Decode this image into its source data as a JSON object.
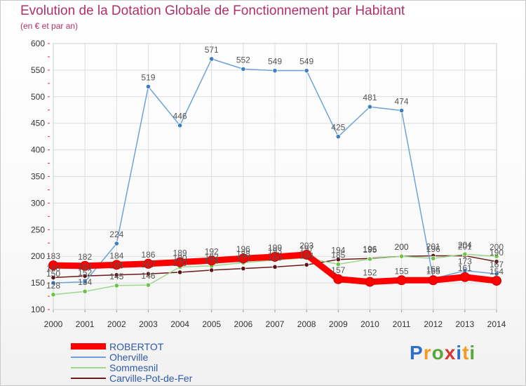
{
  "title": "Evolution de la Dotation Globale de Fonctionnement par Habitant",
  "subtitle": "(en € et par an)",
  "brand": {
    "letters": [
      "P",
      "r",
      "o",
      "x",
      "i",
      "t",
      "i"
    ]
  },
  "colors": {
    "title": "#b0306a",
    "axis_text": "#333333",
    "grid": "#dddddd",
    "value_label": "#555555",
    "legend_text": "#2e5aa6"
  },
  "chart_data": {
    "type": "line",
    "title": "Evolution de la Dotation Globale de Fonctionnement par Habitant",
    "subtitle": "(en € et par an)",
    "xlabel": "",
    "ylabel": "",
    "ylim": [
      100,
      600
    ],
    "yticks": [
      100,
      150,
      200,
      250,
      300,
      350,
      400,
      450,
      500,
      550,
      600
    ],
    "categories": [
      "2000",
      "2001",
      "2002",
      "2003",
      "2004",
      "2005",
      "2006",
      "2007",
      "2008",
      "2009",
      "2010",
      "2011",
      "2012",
      "2013",
      "2014"
    ],
    "series": [
      {
        "name": "Carville-Pot-de-Fer",
        "color": "#6b1a1a",
        "point": "#5a1212",
        "values": [
          160,
          163,
          165,
          167,
          170,
          174,
          177,
          180,
          184,
          194,
          196,
          200,
          201,
          201,
          190
        ],
        "labels": [
          "160",
          "163",
          "165",
          "167",
          "170",
          "174",
          "177",
          "180",
          "184",
          "194",
          "196",
          "200",
          "201",
          "201",
          "190"
        ]
      },
      {
        "name": "Sommesnil",
        "color": "#9bd88a",
        "point": "#6cc24a",
        "values": [
          128,
          134,
          145,
          146,
          180,
          182,
          188,
          193,
          197,
          185,
          195,
          200,
          196,
          204,
          200
        ],
        "labels": [
          "128",
          "134",
          "145",
          "146",
          "180",
          "182",
          "188",
          "193",
          "197",
          "185",
          "195",
          "200",
          "196",
          "204",
          "200"
        ]
      },
      {
        "name": "Oherville",
        "color": "#6fa3d6",
        "point": "#3c7fc2",
        "values": [
          150,
          152,
          224,
          519,
          446,
          571,
          552,
          549,
          549,
          425,
          481,
          474,
          158,
          173,
          167
        ],
        "labels": [
          "150",
          "152",
          "224",
          "519",
          "446",
          "571",
          "552",
          "549",
          "549",
          "425",
          "481",
          "474",
          "158",
          "173",
          "167"
        ]
      },
      {
        "name": "ROBERTOT",
        "color": "#ff0000",
        "point": "#ff0000",
        "values": [
          183,
          182,
          184,
          186,
          189,
          192,
          196,
          199,
          203,
          157,
          152,
          155,
          155,
          161,
          154
        ],
        "labels": [
          "183",
          "182",
          "184",
          "186",
          "189",
          "192",
          "196",
          "199",
          "203",
          "157",
          "152",
          "155",
          "155",
          "161",
          "154"
        ]
      }
    ],
    "legend": [
      "ROBERTOT",
      "Oherville",
      "Sommesnil",
      "Carville-Pot-de-Fer"
    ],
    "legend_position": "bottom-left",
    "grid": true
  }
}
